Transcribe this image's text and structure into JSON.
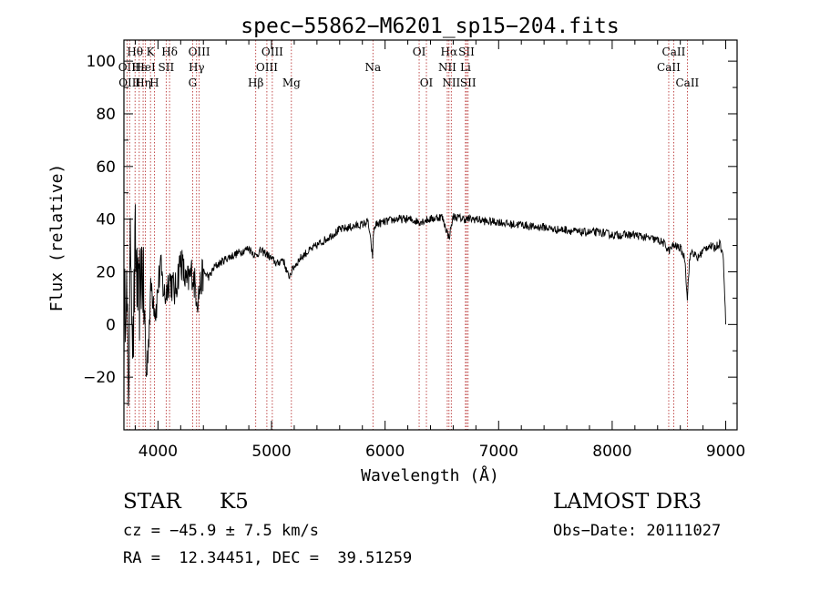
{
  "chart_data": {
    "type": "line",
    "title": "spec−55862−M6201_sp15−204.fits",
    "xlabel": "Wavelength (Å)",
    "ylabel": "Flux (relative)",
    "xlim": [
      3700,
      9100
    ],
    "ylim": [
      -40,
      108
    ],
    "x_ticks": [
      4000,
      5000,
      6000,
      7000,
      8000,
      9000
    ],
    "y_ticks": [
      -20,
      0,
      20,
      40,
      60,
      80,
      100
    ],
    "x_tick_labels": [
      "4000",
      "5000",
      "6000",
      "7000",
      "8000",
      "9000"
    ],
    "y_tick_labels": [
      "−20",
      "0",
      "20",
      "40",
      "60",
      "80",
      "100"
    ],
    "series": [
      {
        "name": "spectrum",
        "x": [
          3700,
          3720,
          3740,
          3760,
          3780,
          3800,
          3830,
          3860,
          3900,
          3940,
          3980,
          4020,
          4060,
          4100,
          4150,
          4200,
          4250,
          4300,
          4350,
          4400,
          4450,
          4500,
          4600,
          4700,
          4800,
          4860,
          4900,
          4950,
          5000,
          5050,
          5100,
          5150,
          5175,
          5200,
          5250,
          5300,
          5400,
          5500,
          5600,
          5700,
          5800,
          5850,
          5890,
          5900,
          5920,
          6000,
          6100,
          6200,
          6300,
          6400,
          6500,
          6563,
          6600,
          6700,
          6800,
          6900,
          7000,
          7100,
          7200,
          7300,
          7400,
          7500,
          7600,
          7700,
          7800,
          7900,
          8000,
          8100,
          8200,
          8300,
          8400,
          8450,
          8500,
          8540,
          8600,
          8640,
          8662,
          8680,
          8700,
          8750,
          8800,
          8850,
          8900,
          8950,
          8980,
          9000
        ],
        "y": [
          -5,
          20,
          -25,
          35,
          -10,
          30,
          5,
          25,
          -20,
          15,
          5,
          22,
          10,
          18,
          12,
          25,
          15,
          20,
          10,
          20,
          18,
          22,
          25,
          27,
          29,
          26,
          28,
          27,
          25,
          23,
          25,
          18,
          20,
          22,
          25,
          27,
          30,
          33,
          36,
          37,
          38,
          39,
          26,
          36,
          38,
          39,
          40,
          40,
          39,
          40,
          41,
          33,
          41,
          40,
          40,
          39,
          39,
          38,
          38,
          37,
          37,
          36,
          36,
          35,
          35,
          35,
          34,
          34,
          34,
          33,
          32,
          31,
          28,
          30,
          29,
          25,
          10,
          24,
          28,
          25,
          28,
          30,
          29,
          31,
          25,
          0
        ]
      }
    ],
    "line_markers": [
      {
        "label": "Hθ",
        "wavelength": 3798,
        "row": 1
      },
      {
        "label": "K",
        "wavelength": 3934,
        "row": 1
      },
      {
        "label": "Hδ",
        "wavelength": 4102,
        "row": 1
      },
      {
        "label": "OIII",
        "wavelength": 4363,
        "row": 1
      },
      {
        "label": "OIII",
        "wavelength": 5007,
        "row": 1
      },
      {
        "label": "OI",
        "wavelength": 6300,
        "row": 1
      },
      {
        "label": "Hα",
        "wavelength": 6563,
        "row": 1
      },
      {
        "label": "SII",
        "wavelength": 6717,
        "row": 1
      },
      {
        "label": "CaII",
        "wavelength": 8542,
        "row": 1
      },
      {
        "label": "OII",
        "wavelength": 3727,
        "row": 2
      },
      {
        "label": "Hε",
        "wavelength": 3835,
        "row": 2
      },
      {
        "label": "HeI",
        "wavelength": 3889,
        "row": 2
      },
      {
        "label": "SII",
        "wavelength": 4072,
        "row": 2
      },
      {
        "label": "Hγ",
        "wavelength": 4340,
        "row": 2
      },
      {
        "label": "OIII",
        "wavelength": 4959,
        "row": 2
      },
      {
        "label": "Na",
        "wavelength": 5893,
        "row": 2
      },
      {
        "label": "NII",
        "wavelength": 6548,
        "row": 2
      },
      {
        "label": "Li",
        "wavelength": 6708,
        "row": 2
      },
      {
        "label": "CaII",
        "wavelength": 8498,
        "row": 2
      },
      {
        "label": "OIII",
        "wavelength": 3750,
        "row": 3
      },
      {
        "label": "Hη",
        "wavelength": 3869,
        "row": 3
      },
      {
        "label": "H",
        "wavelength": 3968,
        "row": 3
      },
      {
        "label": "G",
        "wavelength": 4305,
        "row": 3
      },
      {
        "label": "Hβ",
        "wavelength": 4861,
        "row": 3
      },
      {
        "label": "Mg",
        "wavelength": 5175,
        "row": 3
      },
      {
        "label": "OI",
        "wavelength": 6364,
        "row": 3
      },
      {
        "label": "NII",
        "wavelength": 6583,
        "row": 3
      },
      {
        "label": "SII",
        "wavelength": 6731,
        "row": 3
      },
      {
        "label": "CaII",
        "wavelength": 8662,
        "row": 3
      }
    ]
  },
  "info": {
    "object_class": "STAR",
    "subclass": "K5",
    "survey": "LAMOST DR3",
    "velocity": "cz = −45.9 ± 7.5 km/s",
    "obs_date": "Obs−Date: 20111027",
    "coords": "RA =  12.34451, DEC =  39.51259"
  },
  "colors": {
    "spectrum": "#000000",
    "marker_line": "#b22222",
    "axis": "#000000"
  }
}
